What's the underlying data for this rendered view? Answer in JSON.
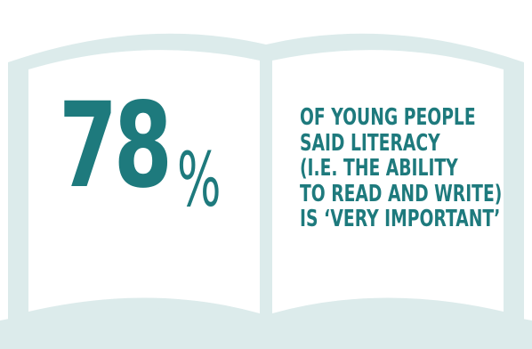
{
  "colors": {
    "accent": "#1e7a7d",
    "book_tint": "#dcebeb",
    "page": "#ffffff"
  },
  "icons": [
    "open-book-icon"
  ],
  "stat": {
    "number": "78",
    "unit": "%"
  },
  "caption": {
    "lines": [
      "OF YOUNG PEOPLE",
      "SAID LITERACY",
      "(I.E. THE ABILITY",
      "TO READ AND WRITE)",
      "IS ‘VERY IMPORTANT’"
    ]
  }
}
